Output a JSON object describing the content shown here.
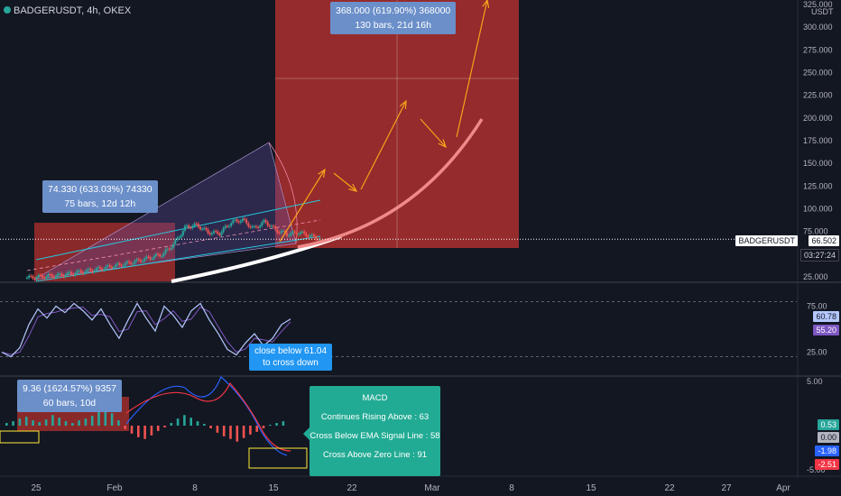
{
  "header": {
    "symbol": "BADGERUSDT, 4h, OKEX"
  },
  "colors": {
    "background": "#131722",
    "up": "#26a69a",
    "down": "#ef5350",
    "red_zone": "#b2302e",
    "projection": "#f7a21b",
    "curve_pink": "#f08a8a",
    "rsi_line": "#7e57c2",
    "macd_line": "#2962ff",
    "signal_line": "#f23645"
  },
  "annotations": {
    "measure_big": {
      "line1": "368.000 (619.90%) 368000",
      "line2": "130 bars, 21d 16h"
    },
    "measure_small": {
      "line1": "74.330 (633.03%) 74330",
      "line2": "75 bars, 12d 12h"
    },
    "measure_macd": {
      "line1": "9.36 (1624.57%) 9357",
      "line2": "60 bars, 10d"
    },
    "rsi_note": {
      "line1": "close below 61.04",
      "line2": "to cross down"
    },
    "macd_panel": {
      "title": "MACD",
      "line1": "Continues Rising Above : 63",
      "line2": "Cross Below EMA Signal Line : 58",
      "line3": "Cross Above Zero Line : 91"
    }
  },
  "price_tags": {
    "symbol_label": "BADGERUSDT",
    "last_price": "66.502",
    "countdown": "03:27:24",
    "rsi_value": "60.78",
    "rsi_ma": "55.20",
    "macd_hist": "0.53",
    "macd_zero": "0.00",
    "macd_line": "-1.98",
    "macd_signal": "-2.51"
  },
  "chart_data": [
    {
      "type": "line",
      "name": "price",
      "ylabel": "USDT",
      "ylim": [
        20,
        330
      ],
      "yticks": [
        {
          "v": 325,
          "label": "325.000"
        },
        {
          "v": 300,
          "label": "300.000"
        },
        {
          "v": 275,
          "label": "275.000"
        },
        {
          "v": 250,
          "label": "250.000"
        },
        {
          "v": 225,
          "label": "225.000"
        },
        {
          "v": 200,
          "label": "200.000"
        },
        {
          "v": 175,
          "label": "175.000"
        },
        {
          "v": 150,
          "label": "150.000"
        },
        {
          "v": 125,
          "label": "125.000"
        },
        {
          "v": 100,
          "label": "100.000"
        },
        {
          "v": 75,
          "label": "75.000"
        },
        {
          "v": 25,
          "label": "25.000"
        }
      ],
      "last_price": 66.502,
      "price_path": [
        [
          0,
          24
        ],
        [
          3,
          27
        ],
        [
          6,
          33
        ],
        [
          9,
          40
        ],
        [
          12,
          50
        ],
        [
          13,
          62
        ],
        [
          14,
          80
        ],
        [
          15,
          82
        ],
        [
          16,
          74
        ],
        [
          17,
          73
        ],
        [
          18,
          85
        ],
        [
          19,
          88
        ],
        [
          20,
          78
        ],
        [
          21,
          86
        ],
        [
          22,
          76
        ],
        [
          23,
          72
        ],
        [
          24,
          74
        ],
        [
          25,
          70
        ],
        [
          26,
          66
        ]
      ],
      "projection_curve": [
        [
          26,
          68
        ],
        [
          29,
          80
        ],
        [
          32,
          95
        ],
        [
          35,
          120
        ],
        [
          38,
          155
        ],
        [
          40,
          200
        ]
      ],
      "red_zone_value": 368.0
    },
    {
      "type": "line",
      "name": "RSI",
      "ylim": [
        0,
        100
      ],
      "yticks": [
        {
          "v": 75,
          "label": "75.00"
        },
        {
          "v": 25,
          "label": "25.00"
        }
      ],
      "levels": [
        80,
        20
      ],
      "values": [
        25,
        20,
        30,
        55,
        72,
        62,
        75,
        68,
        78,
        70,
        60,
        72,
        55,
        40,
        60,
        78,
        62,
        48,
        75,
        65,
        52,
        70,
        78,
        60,
        45,
        28,
        22,
        35,
        45,
        32,
        40,
        55,
        61
      ]
    },
    {
      "type": "bar",
      "name": "MACD",
      "ylim": [
        -5.5,
        5.5
      ],
      "yticks": [
        {
          "v": 5,
          "label": "5.00"
        },
        {
          "v": -5,
          "label": "-5.00"
        }
      ],
      "histogram": [
        0.3,
        0.5,
        0.8,
        1.0,
        0.6,
        0.4,
        0.7,
        1.2,
        0.9,
        0.5,
        0.3,
        0.6,
        0.8,
        1.1,
        1.6,
        2.0,
        1.4,
        0.6,
        -0.4,
        -0.9,
        -1.3,
        -1.5,
        -1.1,
        -0.6,
        -0.2,
        0.3,
        0.8,
        1.2,
        0.9,
        0.5,
        0.2,
        -0.3,
        -0.8,
        -1.2,
        -1.5,
        -1.8,
        -1.4,
        -1.0,
        -0.7,
        -0.3,
        0.1,
        0.3,
        0.5
      ]
    }
  ],
  "x_axis": {
    "labels": [
      "25",
      "Feb",
      "8",
      "15",
      "22",
      "Mar",
      "8",
      "15",
      "22",
      "27",
      "Apr"
    ]
  }
}
